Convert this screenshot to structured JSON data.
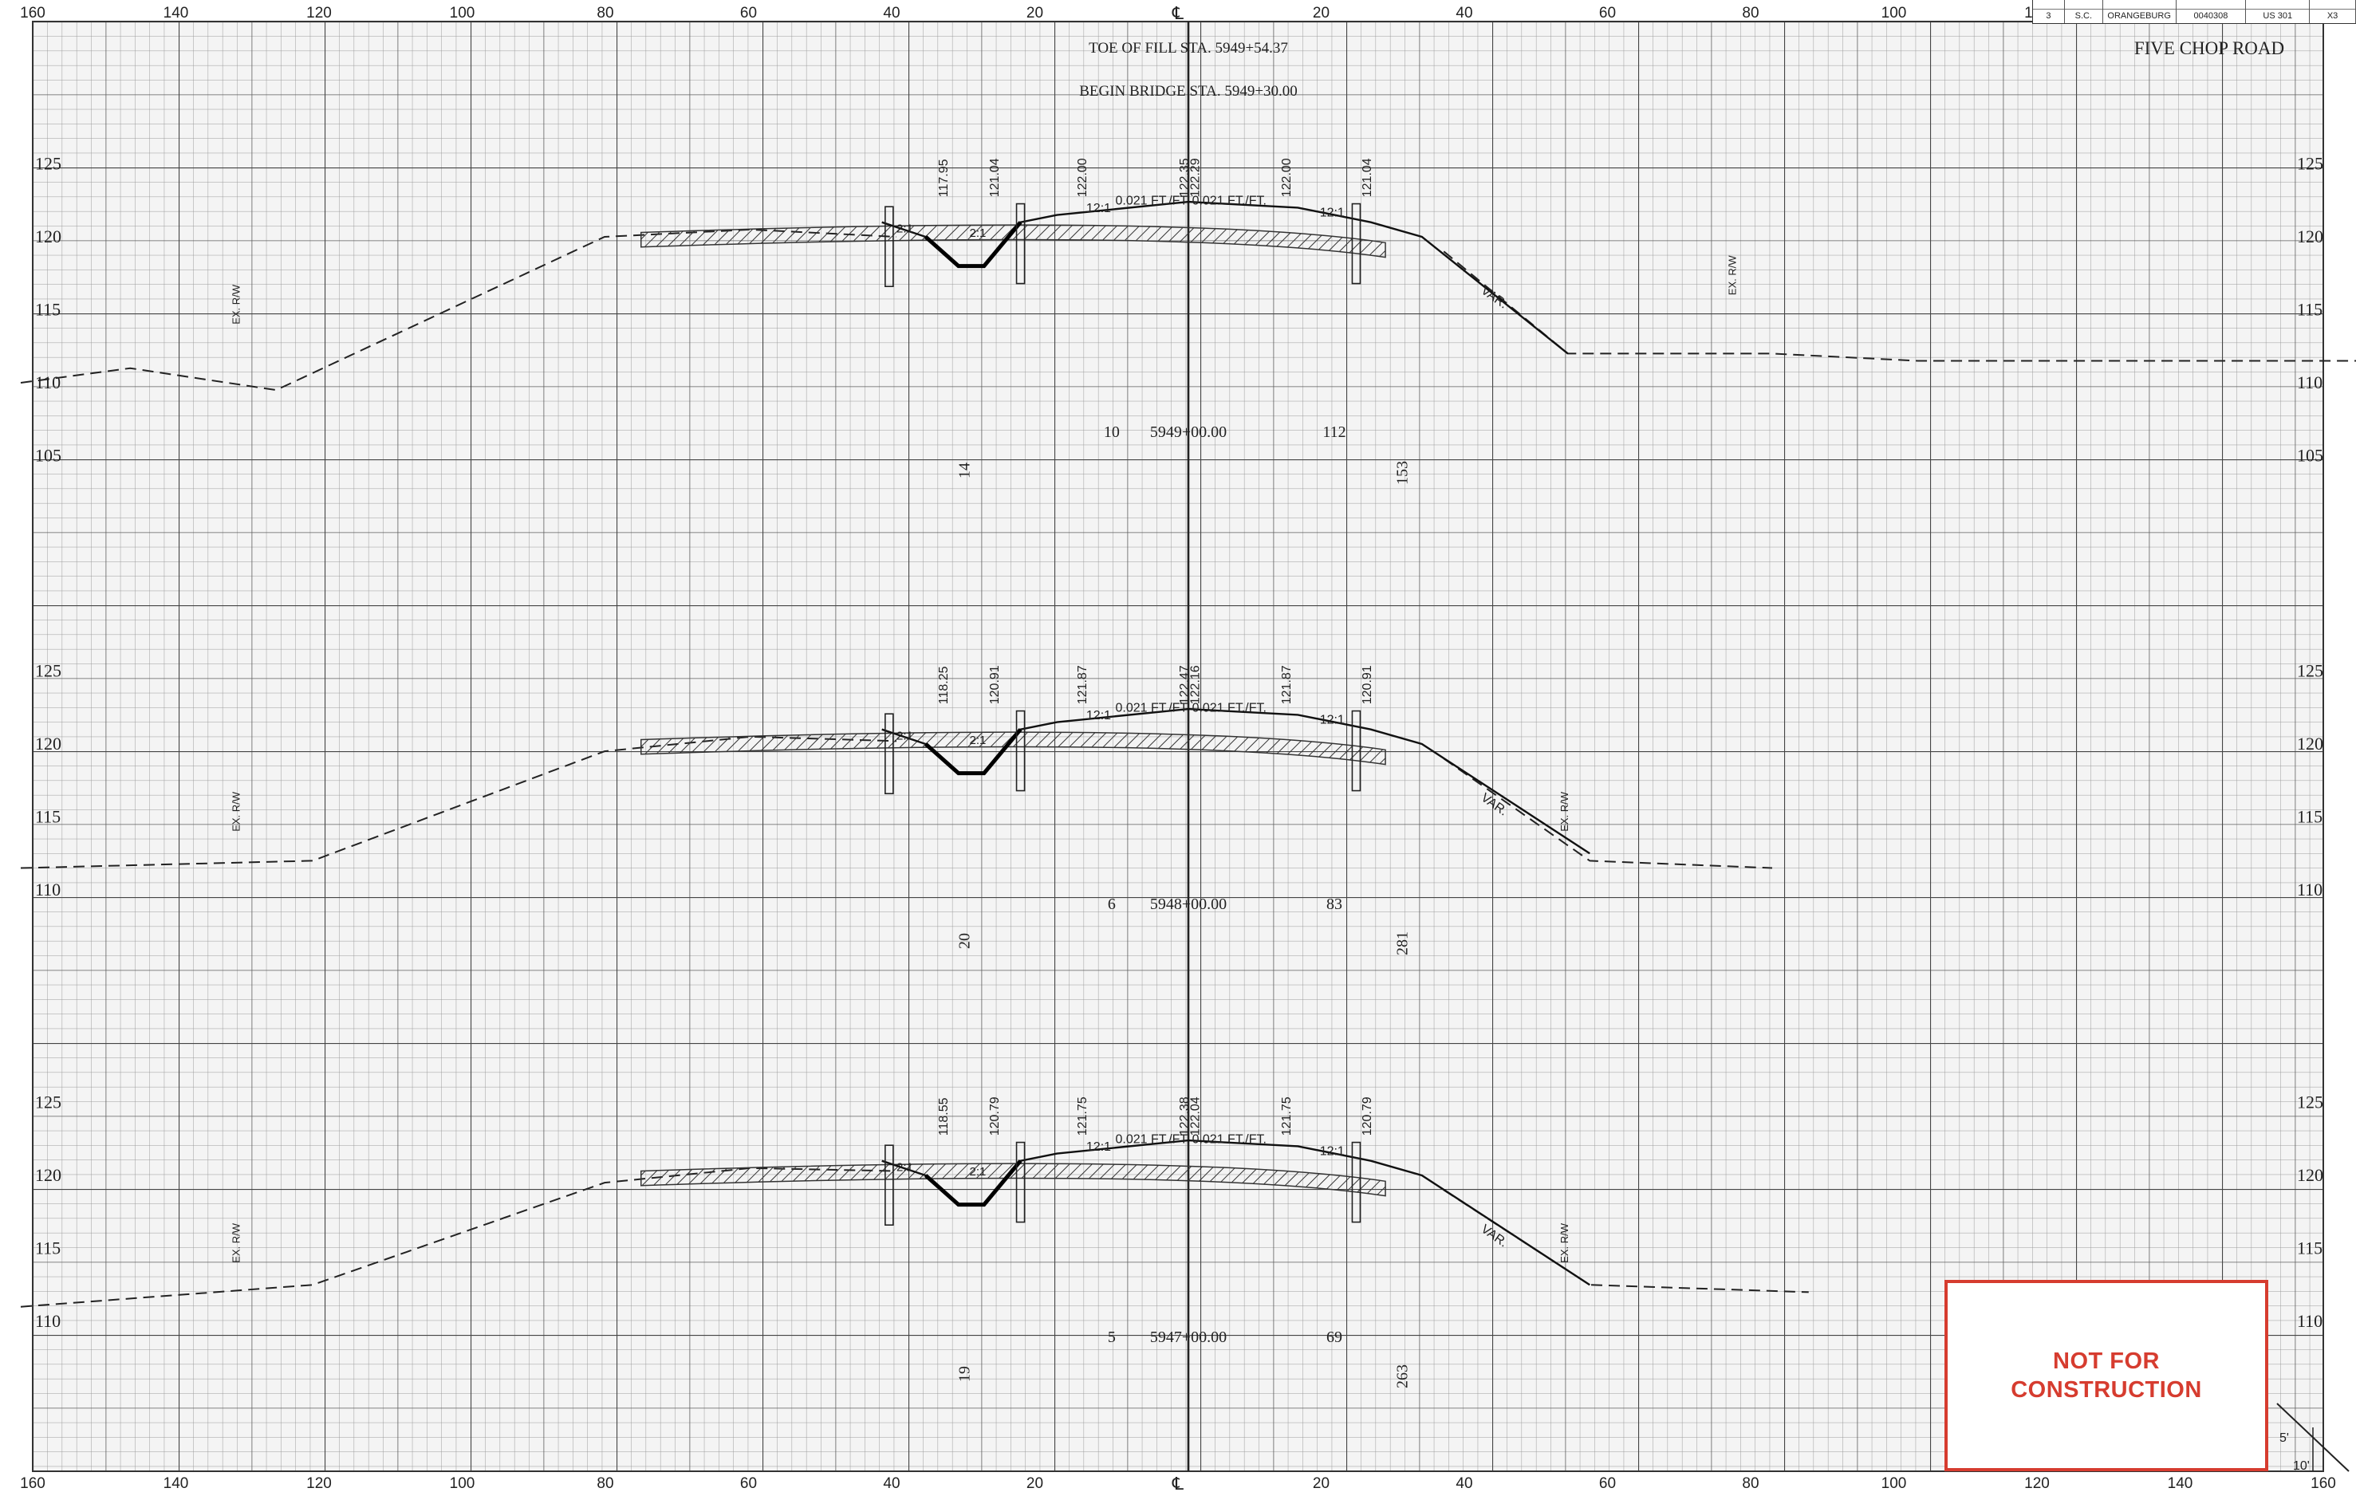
{
  "sheet": {
    "road_name": "FIVE CHOP ROAD",
    "toe_of_fill": "TOE OF FILL STA. 5949+54.37",
    "begin_bridge": "BEGIN BRIDGE STA. 5949+30.00",
    "centerline_symbol": "℄",
    "offset_scale_labels": [
      "160",
      "140",
      "120",
      "100",
      "80",
      "60",
      "40",
      "20",
      "",
      "20",
      "40",
      "60",
      "80",
      "100",
      "120",
      "140",
      "160"
    ],
    "not_for_construction": [
      "NOT FOR",
      "CONSTRUCTION"
    ],
    "corner_note_1": "5'",
    "corner_note_2": "10'",
    "title_block": {
      "cells": [
        "3",
        "S.C.",
        "ORANGEBURG",
        "0040308",
        "US 301",
        "X3"
      ]
    }
  },
  "sections": [
    {
      "station": "5949+00.00",
      "elevation_labels": [
        "125",
        "120",
        "115",
        "110",
        "105"
      ],
      "cut_area": "10",
      "fill_area": "112",
      "left_volume": "14",
      "right_volume": "153",
      "slope_text_left": "0.021 FT./FT.",
      "slope_text_right": "0.021 FT./FT.",
      "pavement_slope_left": "12:1",
      "pavement_slope_right": "12:1",
      "ditch_slope_left": "2:1",
      "ditch_slope_right": "2:1",
      "fill_slope": "VAR.",
      "row_left": "EX. R/W",
      "row_right": "EX. R/W",
      "elevations": [
        "117.95",
        "121.04",
        "122.00",
        "122.35",
        "122.29",
        "122.00",
        "121.04"
      ]
    },
    {
      "station": "5948+00.00",
      "elevation_labels": [
        "125",
        "120",
        "115",
        "110"
      ],
      "cut_area": "6",
      "fill_area": "83",
      "left_volume": "20",
      "right_volume": "281",
      "slope_text_left": "0.021 FT./FT.",
      "slope_text_right": "0.021 FT./FT.",
      "pavement_slope_left": "12:1",
      "pavement_slope_right": "12:1",
      "ditch_slope_left": "2:1",
      "ditch_slope_right": "2:1",
      "fill_slope": "VAR.",
      "row_left": "EX. R/W",
      "row_right": "EX. R/W",
      "elevations": [
        "118.25",
        "120.91",
        "121.87",
        "122.47",
        "122.16",
        "121.87",
        "120.91"
      ]
    },
    {
      "station": "5947+00.00",
      "elevation_labels": [
        "125",
        "120",
        "115",
        "110"
      ],
      "cut_area": "5",
      "fill_area": "69",
      "left_volume": "19",
      "right_volume": "263",
      "slope_text_left": "0.021 FT./FT.",
      "slope_text_right": "0.021 FT./FT.",
      "pavement_slope_left": "12:1",
      "pavement_slope_right": "12:1",
      "ditch_slope_left": "2:1",
      "ditch_slope_right": "2:1",
      "fill_slope": "VAR.",
      "row_left": "EX. R/W",
      "row_right": "EX. R/W",
      "elevations": [
        "118.55",
        "120.79",
        "121.75",
        "122.38",
        "122.04",
        "121.75",
        "120.79"
      ]
    }
  ]
}
